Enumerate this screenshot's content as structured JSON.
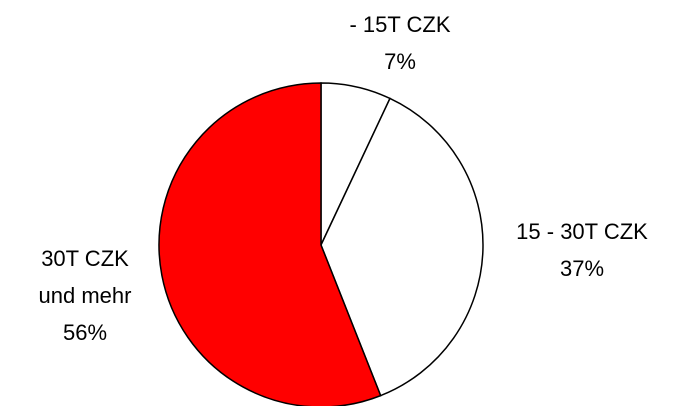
{
  "chart_data": {
    "type": "pie",
    "categories": [
      "- 15T CZK",
      "15 - 30T CZK",
      "30T CZK und mehr"
    ],
    "values": [
      7,
      37,
      56
    ],
    "value_labels": [
      "7%",
      "37%",
      "56%"
    ],
    "colors": [
      "#ffffff",
      "#ffffff",
      "#ff0000"
    ]
  }
}
